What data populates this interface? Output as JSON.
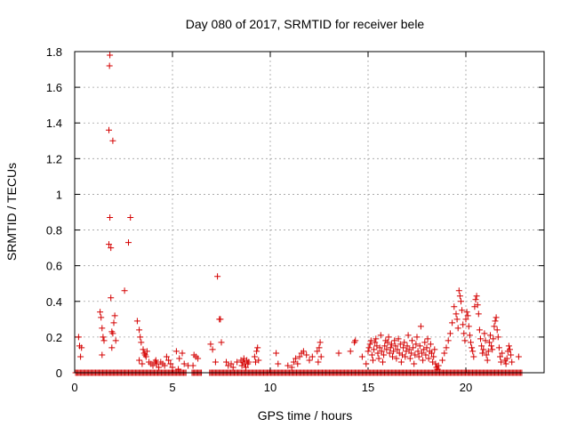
{
  "chart_data": {
    "type": "scatter",
    "title": "Day 080 of 2017, SRMTID for receiver bele",
    "xlabel": "GPS time / hours",
    "ylabel": "SRMTID / TECUs",
    "xlim": [
      0,
      24
    ],
    "ylim": [
      0,
      1.8
    ],
    "xticks": [
      0,
      5,
      10,
      15,
      20
    ],
    "yticks": [
      0,
      0.2,
      0.4,
      0.6,
      0.8,
      1,
      1.2,
      1.4,
      1.6,
      1.8
    ],
    "xtick_labels": [
      "0",
      "5",
      "10",
      "15",
      "20"
    ],
    "ytick_labels": [
      "0",
      "0.2",
      "0.4",
      "0.6",
      "0.8",
      "1",
      "1.2",
      "1.4",
      "1.6",
      "1.8"
    ],
    "grid": true,
    "marker": "+",
    "marker_color": "#d40000",
    "series": [
      {
        "name": "SRMTID",
        "points": [
          [
            0.2,
            0.2
          ],
          [
            0.25,
            0.15
          ],
          [
            0.3,
            0.09
          ],
          [
            0.35,
            0.14
          ],
          [
            1.3,
            0.34
          ],
          [
            1.35,
            0.31
          ],
          [
            1.4,
            0.25
          ],
          [
            1.45,
            0.2
          ],
          [
            1.5,
            0.18
          ],
          [
            1.4,
            0.1
          ],
          [
            1.75,
            0.72
          ],
          [
            1.8,
            0.87
          ],
          [
            1.75,
            1.36
          ],
          [
            1.8,
            1.78
          ],
          [
            1.78,
            1.72
          ],
          [
            1.95,
            1.3
          ],
          [
            1.85,
            0.7
          ],
          [
            1.85,
            0.42
          ],
          [
            1.9,
            0.23
          ],
          [
            1.95,
            0.22
          ],
          [
            2.0,
            0.28
          ],
          [
            2.05,
            0.32
          ],
          [
            1.9,
            0.14
          ],
          [
            2.1,
            0.18
          ],
          [
            2.55,
            0.46
          ],
          [
            2.75,
            0.73
          ],
          [
            2.85,
            0.87
          ],
          [
            3.2,
            0.29
          ],
          [
            3.3,
            0.24
          ],
          [
            3.35,
            0.2
          ],
          [
            3.4,
            0.17
          ],
          [
            3.5,
            0.13
          ],
          [
            3.55,
            0.11
          ],
          [
            3.6,
            0.1
          ],
          [
            3.65,
            0.09
          ],
          [
            3.7,
            0.12
          ],
          [
            3.3,
            0.07
          ],
          [
            3.45,
            0.05
          ],
          [
            3.8,
            0.06
          ],
          [
            3.9,
            0.05
          ],
          [
            4.0,
            0.04
          ],
          [
            4.1,
            0.06
          ],
          [
            4.2,
            0.05
          ],
          [
            4.3,
            0.03
          ],
          [
            4.4,
            0.06
          ],
          [
            4.5,
            0.05
          ],
          [
            4.15,
            0.07
          ],
          [
            4.7,
            0.09
          ],
          [
            4.8,
            0.07
          ],
          [
            4.9,
            0.05
          ],
          [
            5.0,
            0.03
          ],
          [
            4.6,
            0.04
          ],
          [
            5.2,
            0.12
          ],
          [
            5.35,
            0.08
          ],
          [
            5.5,
            0.11
          ],
          [
            5.6,
            0.05
          ],
          [
            5.8,
            0.04
          ],
          [
            5.3,
            0.02
          ],
          [
            6.1,
            0.1
          ],
          [
            6.2,
            0.09
          ],
          [
            6.3,
            0.08
          ],
          [
            6.05,
            0.04
          ],
          [
            6.95,
            0.16
          ],
          [
            7.05,
            0.13
          ],
          [
            7.3,
            0.54
          ],
          [
            7.4,
            0.3
          ],
          [
            7.45,
            0.3
          ],
          [
            7.5,
            0.17
          ],
          [
            7.2,
            0.06
          ],
          [
            7.75,
            0.06
          ],
          [
            7.85,
            0.04
          ],
          [
            8.0,
            0.05
          ],
          [
            8.1,
            0.03
          ],
          [
            8.3,
            0.06
          ],
          [
            8.5,
            0.07
          ],
          [
            8.55,
            0.04
          ],
          [
            8.6,
            0.06
          ],
          [
            8.65,
            0.08
          ],
          [
            8.7,
            0.05
          ],
          [
            8.75,
            0.03
          ],
          [
            8.8,
            0.07
          ],
          [
            8.85,
            0.05
          ],
          [
            8.9,
            0.06
          ],
          [
            9.2,
            0.09
          ],
          [
            9.3,
            0.12
          ],
          [
            9.35,
            0.14
          ],
          [
            9.25,
            0.06
          ],
          [
            9.4,
            0.07
          ],
          [
            10.3,
            0.11
          ],
          [
            10.4,
            0.05
          ],
          [
            10.9,
            0.04
          ],
          [
            11.1,
            0.03
          ],
          [
            11.2,
            0.06
          ],
          [
            11.3,
            0.08
          ],
          [
            11.4,
            0.05
          ],
          [
            11.5,
            0.09
          ],
          [
            11.6,
            0.11
          ],
          [
            11.7,
            0.12
          ],
          [
            11.85,
            0.1
          ],
          [
            12.0,
            0.07
          ],
          [
            12.15,
            0.09
          ],
          [
            12.4,
            0.12
          ],
          [
            12.5,
            0.14
          ],
          [
            12.55,
            0.17
          ],
          [
            12.6,
            0.09
          ],
          [
            12.45,
            0.06
          ],
          [
            13.5,
            0.11
          ],
          [
            14.1,
            0.12
          ],
          [
            14.3,
            0.17
          ],
          [
            14.35,
            0.18
          ],
          [
            14.7,
            0.09
          ],
          [
            14.9,
            0.05
          ],
          [
            15.0,
            0.12
          ],
          [
            15.05,
            0.14
          ],
          [
            15.1,
            0.16
          ],
          [
            15.15,
            0.18
          ],
          [
            15.2,
            0.1
          ],
          [
            15.25,
            0.07
          ],
          [
            15.3,
            0.13
          ],
          [
            15.35,
            0.17
          ],
          [
            15.4,
            0.19
          ],
          [
            15.45,
            0.15
          ],
          [
            15.5,
            0.11
          ],
          [
            15.55,
            0.08
          ],
          [
            15.6,
            0.14
          ],
          [
            15.65,
            0.21
          ],
          [
            15.7,
            0.12
          ],
          [
            15.75,
            0.06
          ],
          [
            15.8,
            0.1
          ],
          [
            15.85,
            0.15
          ],
          [
            15.9,
            0.18
          ],
          [
            15.95,
            0.13
          ],
          [
            16.0,
            0.17
          ],
          [
            16.05,
            0.2
          ],
          [
            16.1,
            0.11
          ],
          [
            16.15,
            0.14
          ],
          [
            16.2,
            0.16
          ],
          [
            16.25,
            0.09
          ],
          [
            16.3,
            0.12
          ],
          [
            16.35,
            0.18
          ],
          [
            16.4,
            0.15
          ],
          [
            16.45,
            0.08
          ],
          [
            16.5,
            0.13
          ],
          [
            16.55,
            0.19
          ],
          [
            16.6,
            0.11
          ],
          [
            16.65,
            0.16
          ],
          [
            16.7,
            0.06
          ],
          [
            16.75,
            0.1
          ],
          [
            16.8,
            0.14
          ],
          [
            16.85,
            0.17
          ],
          [
            16.9,
            0.09
          ],
          [
            16.95,
            0.12
          ],
          [
            17.0,
            0.15
          ],
          [
            17.05,
            0.21
          ],
          [
            17.1,
            0.13
          ],
          [
            17.15,
            0.08
          ],
          [
            17.2,
            0.11
          ],
          [
            17.25,
            0.18
          ],
          [
            17.3,
            0.14
          ],
          [
            17.35,
            0.05
          ],
          [
            17.4,
            0.1
          ],
          [
            17.45,
            0.16
          ],
          [
            17.5,
            0.2
          ],
          [
            17.55,
            0.12
          ],
          [
            17.6,
            0.09
          ],
          [
            17.65,
            0.15
          ],
          [
            17.7,
            0.26
          ],
          [
            17.75,
            0.11
          ],
          [
            17.8,
            0.07
          ],
          [
            17.85,
            0.13
          ],
          [
            17.9,
            0.17
          ],
          [
            17.95,
            0.1
          ],
          [
            18.0,
            0.14
          ],
          [
            18.05,
            0.19
          ],
          [
            18.1,
            0.08
          ],
          [
            18.15,
            0.12
          ],
          [
            18.2,
            0.16
          ],
          [
            18.25,
            0.11
          ],
          [
            18.3,
            0.06
          ],
          [
            18.35,
            0.09
          ],
          [
            18.4,
            0.13
          ],
          [
            18.45,
            0.05
          ],
          [
            18.5,
            0.03
          ],
          [
            18.55,
            0.02
          ],
          [
            18.6,
            0.04
          ],
          [
            18.8,
            0.07
          ],
          [
            18.9,
            0.11
          ],
          [
            19.0,
            0.14
          ],
          [
            19.1,
            0.18
          ],
          [
            19.2,
            0.22
          ],
          [
            19.3,
            0.28
          ],
          [
            19.4,
            0.37
          ],
          [
            19.5,
            0.33
          ],
          [
            19.55,
            0.3
          ],
          [
            19.6,
            0.25
          ],
          [
            19.65,
            0.46
          ],
          [
            19.7,
            0.43
          ],
          [
            19.75,
            0.4
          ],
          [
            19.8,
            0.35
          ],
          [
            19.85,
            0.27
          ],
          [
            19.9,
            0.22
          ],
          [
            19.95,
            0.18
          ],
          [
            20.0,
            0.3
          ],
          [
            20.05,
            0.34
          ],
          [
            20.1,
            0.32
          ],
          [
            20.15,
            0.26
          ],
          [
            20.2,
            0.21
          ],
          [
            20.25,
            0.17
          ],
          [
            20.3,
            0.14
          ],
          [
            20.35,
            0.12
          ],
          [
            20.4,
            0.09
          ],
          [
            20.45,
            0.37
          ],
          [
            20.5,
            0.41
          ],
          [
            20.55,
            0.43
          ],
          [
            20.6,
            0.38
          ],
          [
            20.65,
            0.33
          ],
          [
            20.7,
            0.24
          ],
          [
            20.75,
            0.19
          ],
          [
            20.8,
            0.15
          ],
          [
            20.85,
            0.11
          ],
          [
            20.9,
            0.13
          ],
          [
            20.95,
            0.22
          ],
          [
            21.0,
            0.18
          ],
          [
            21.05,
            0.1
          ],
          [
            21.1,
            0.07
          ],
          [
            21.15,
            0.12
          ],
          [
            21.2,
            0.17
          ],
          [
            21.25,
            0.21
          ],
          [
            21.3,
            0.15
          ],
          [
            21.35,
            0.13
          ],
          [
            21.4,
            0.19
          ],
          [
            21.45,
            0.26
          ],
          [
            21.5,
            0.29
          ],
          [
            21.55,
            0.31
          ],
          [
            21.6,
            0.24
          ],
          [
            21.65,
            0.2
          ],
          [
            21.7,
            0.14
          ],
          [
            21.75,
            0.09
          ],
          [
            21.8,
            0.06
          ],
          [
            21.85,
            0.11
          ],
          [
            22.0,
            0.07
          ],
          [
            22.05,
            0.05
          ],
          [
            22.1,
            0.08
          ],
          [
            22.15,
            0.12
          ],
          [
            22.2,
            0.15
          ],
          [
            22.25,
            0.13
          ],
          [
            22.3,
            0.1
          ],
          [
            22.35,
            0.06
          ],
          [
            22.7,
            0.09
          ]
        ],
        "zero_runs": [
          [
            0.05,
            5.7
          ],
          [
            6.0,
            6.5
          ],
          [
            6.9,
            22.9
          ]
        ]
      }
    ]
  }
}
